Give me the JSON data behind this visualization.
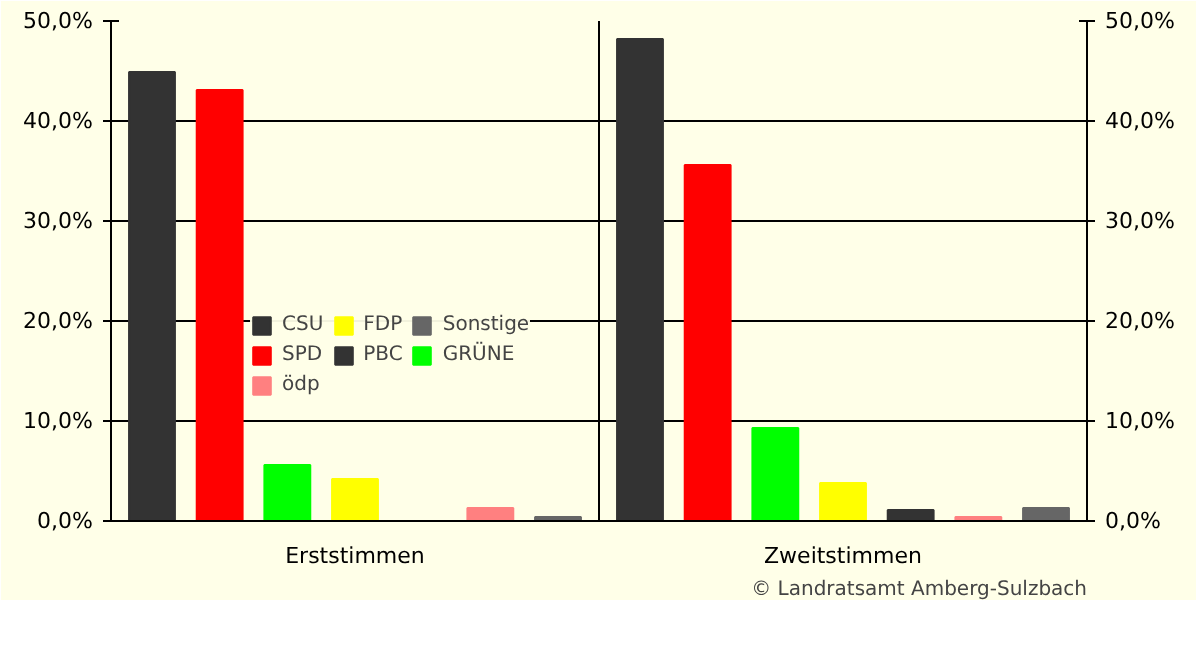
{
  "chart_data": {
    "type": "bar",
    "categories": [
      "Erststimmen",
      "Zweitstimmen"
    ],
    "series": [
      {
        "name": "CSU",
        "color": "#333333",
        "values": [
          44.9,
          48.2
        ]
      },
      {
        "name": "SPD",
        "color": "#ff0000",
        "values": [
          43.1,
          35.6
        ]
      },
      {
        "name": "GRÜNE",
        "color": "#00ff00",
        "values": [
          5.6,
          9.3
        ]
      },
      {
        "name": "FDP",
        "color": "#ffff00",
        "values": [
          4.2,
          3.8
        ]
      },
      {
        "name": "PBC",
        "color": "#333333",
        "values": [
          null,
          1.1
        ]
      },
      {
        "name": "ödp",
        "color": "#ff8080",
        "values": [
          1.3,
          0.4
        ]
      },
      {
        "name": "Sonstige",
        "color": "#666666",
        "values": [
          0.4,
          1.3
        ]
      }
    ],
    "ylim": [
      0,
      50
    ],
    "yticks": [
      {
        "value": 0,
        "label": "0,0%"
      },
      {
        "value": 10,
        "label": "10,0%"
      },
      {
        "value": 20,
        "label": "20,0%"
      },
      {
        "value": 30,
        "label": "30,0%"
      },
      {
        "value": 40,
        "label": "40,0%"
      },
      {
        "value": 50,
        "label": "50,0%"
      }
    ],
    "y2lim": [
      0,
      50
    ],
    "y2ticks": [
      {
        "value": 0,
        "label": "0,0%"
      },
      {
        "value": 10,
        "label": "10,0%"
      },
      {
        "value": 20,
        "label": "20,0%"
      },
      {
        "value": 30,
        "label": "30,0%"
      },
      {
        "value": 40,
        "label": "40,0%"
      },
      {
        "value": 50,
        "label": "50,0%"
      }
    ],
    "grid": "y",
    "legend": "bottom",
    "annotations": [
      "© Landratsamt Amberg-Sulzbach"
    ]
  }
}
